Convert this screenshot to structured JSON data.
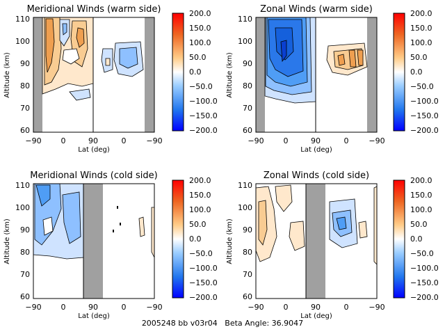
{
  "footer": {
    "orbit_id": "2005248 bb v03r04",
    "beta_label": "Beta Angle:",
    "beta_value": "36.9047"
  },
  "colorbar": {
    "ticks": [
      "200.0",
      "150.0",
      "100.0",
      "50.0",
      "0.0",
      "−50.0",
      "−100.0",
      "−150.0",
      "−200.0"
    ],
    "range": [
      -200,
      200
    ],
    "colors": [
      "#0000ff",
      "#2277ee",
      "#99ccff",
      "#ffffff",
      "#ffcc88",
      "#ee6622",
      "#ff0000"
    ]
  },
  "chart_data": [
    {
      "type": "heatmap",
      "title": "Meridional Winds (warm side)",
      "ylabel": "Altitude (km)",
      "xlabel": "Lat (deg)",
      "yticks": [
        "60",
        "70",
        "80",
        "90",
        "100",
        "110"
      ],
      "ylim": [
        60,
        110
      ],
      "xticks": [
        "−90",
        "0",
        "90",
        "0",
        "−90"
      ],
      "contour_levels_magnitude": [
        50,
        100,
        150
      ],
      "no_data_bands_latitude": [
        [
          -90,
          -80
        ],
        [
          70,
          90
        ]
      ],
      "features": [
        {
          "label": "positive winds, 0 to 100",
          "lat_range": [
            -80,
            90
          ],
          "alt_range": [
            77,
            110
          ]
        },
        {
          "label": "negative winds, 0 to -50",
          "lat_range": [
            -50,
            90
          ],
          "alt_range": [
            73,
            84
          ]
        },
        {
          "label": "negative winds, 0 to -100",
          "lat_range": [
            -55,
            40
          ],
          "alt_range": [
            80,
            100
          ]
        }
      ]
    },
    {
      "type": "heatmap",
      "title": "Zonal Winds (warm side)",
      "ylabel": "Altitude (km)",
      "xlabel": "Lat (deg)",
      "yticks": [
        "60",
        "70",
        "80",
        "90",
        "100",
        "110"
      ],
      "ylim": [
        60,
        110
      ],
      "xticks": [
        "−90",
        "0",
        "90",
        "0",
        "−90"
      ],
      "contour_levels_magnitude": [
        50,
        100,
        150,
        200
      ],
      "no_data_bands_latitude": [
        [
          -90,
          -80
        ],
        [
          70,
          90
        ]
      ],
      "features": [
        {
          "label": "negative winds, -50 to -200",
          "lat_range": [
            -80,
            90
          ],
          "alt_range": [
            73,
            110
          ]
        },
        {
          "label": "positive winds, 0 to 100",
          "lat_range": [
            -40,
            10
          ],
          "alt_range": [
            84,
            98
          ]
        }
      ]
    },
    {
      "type": "heatmap",
      "title": "Meridional Winds (cold side)",
      "ylabel": "Altitude (km)",
      "xlabel": "Lat (deg)",
      "yticks": [
        "60",
        "70",
        "80",
        "90",
        "100",
        "110"
      ],
      "ylim": [
        60,
        110
      ],
      "xticks": [
        "−90",
        "0",
        "90",
        "0",
        "−90"
      ],
      "contour_levels_magnitude": [
        50,
        100
      ],
      "no_data_bands_latitude": [
        [
          60,
          90
        ],
        [
          90,
          70
        ]
      ],
      "features": [
        {
          "label": "negative winds, 0 to -100",
          "lat_range": [
            -90,
            60
          ],
          "alt_range": [
            72,
            110
          ]
        },
        {
          "label": "positive winds, 0 to 50",
          "lat_range": [
            -30,
            -90
          ],
          "alt_range": [
            83,
            100
          ]
        }
      ]
    },
    {
      "type": "heatmap",
      "title": "Zonal Winds (cold side)",
      "ylabel": "Altitude (km)",
      "xlabel": "Lat (deg)",
      "yticks": [
        "60",
        "70",
        "80",
        "90",
        "100",
        "110"
      ],
      "ylim": [
        60,
        110
      ],
      "xticks": [
        "−90",
        "0",
        "90",
        "0",
        "−90"
      ],
      "contour_levels_magnitude": [
        50,
        100
      ],
      "no_data_bands_latitude": [
        [
          60,
          90
        ],
        [
          90,
          70
        ]
      ],
      "features": [
        {
          "label": "positive winds, 0 to 50",
          "lat_range": [
            -90,
            60
          ],
          "alt_range": [
            76,
            110
          ]
        },
        {
          "label": "negative winds, 0 to -100",
          "lat_range": [
            60,
            10
          ],
          "alt_range": [
            85,
            100
          ]
        }
      ]
    }
  ]
}
